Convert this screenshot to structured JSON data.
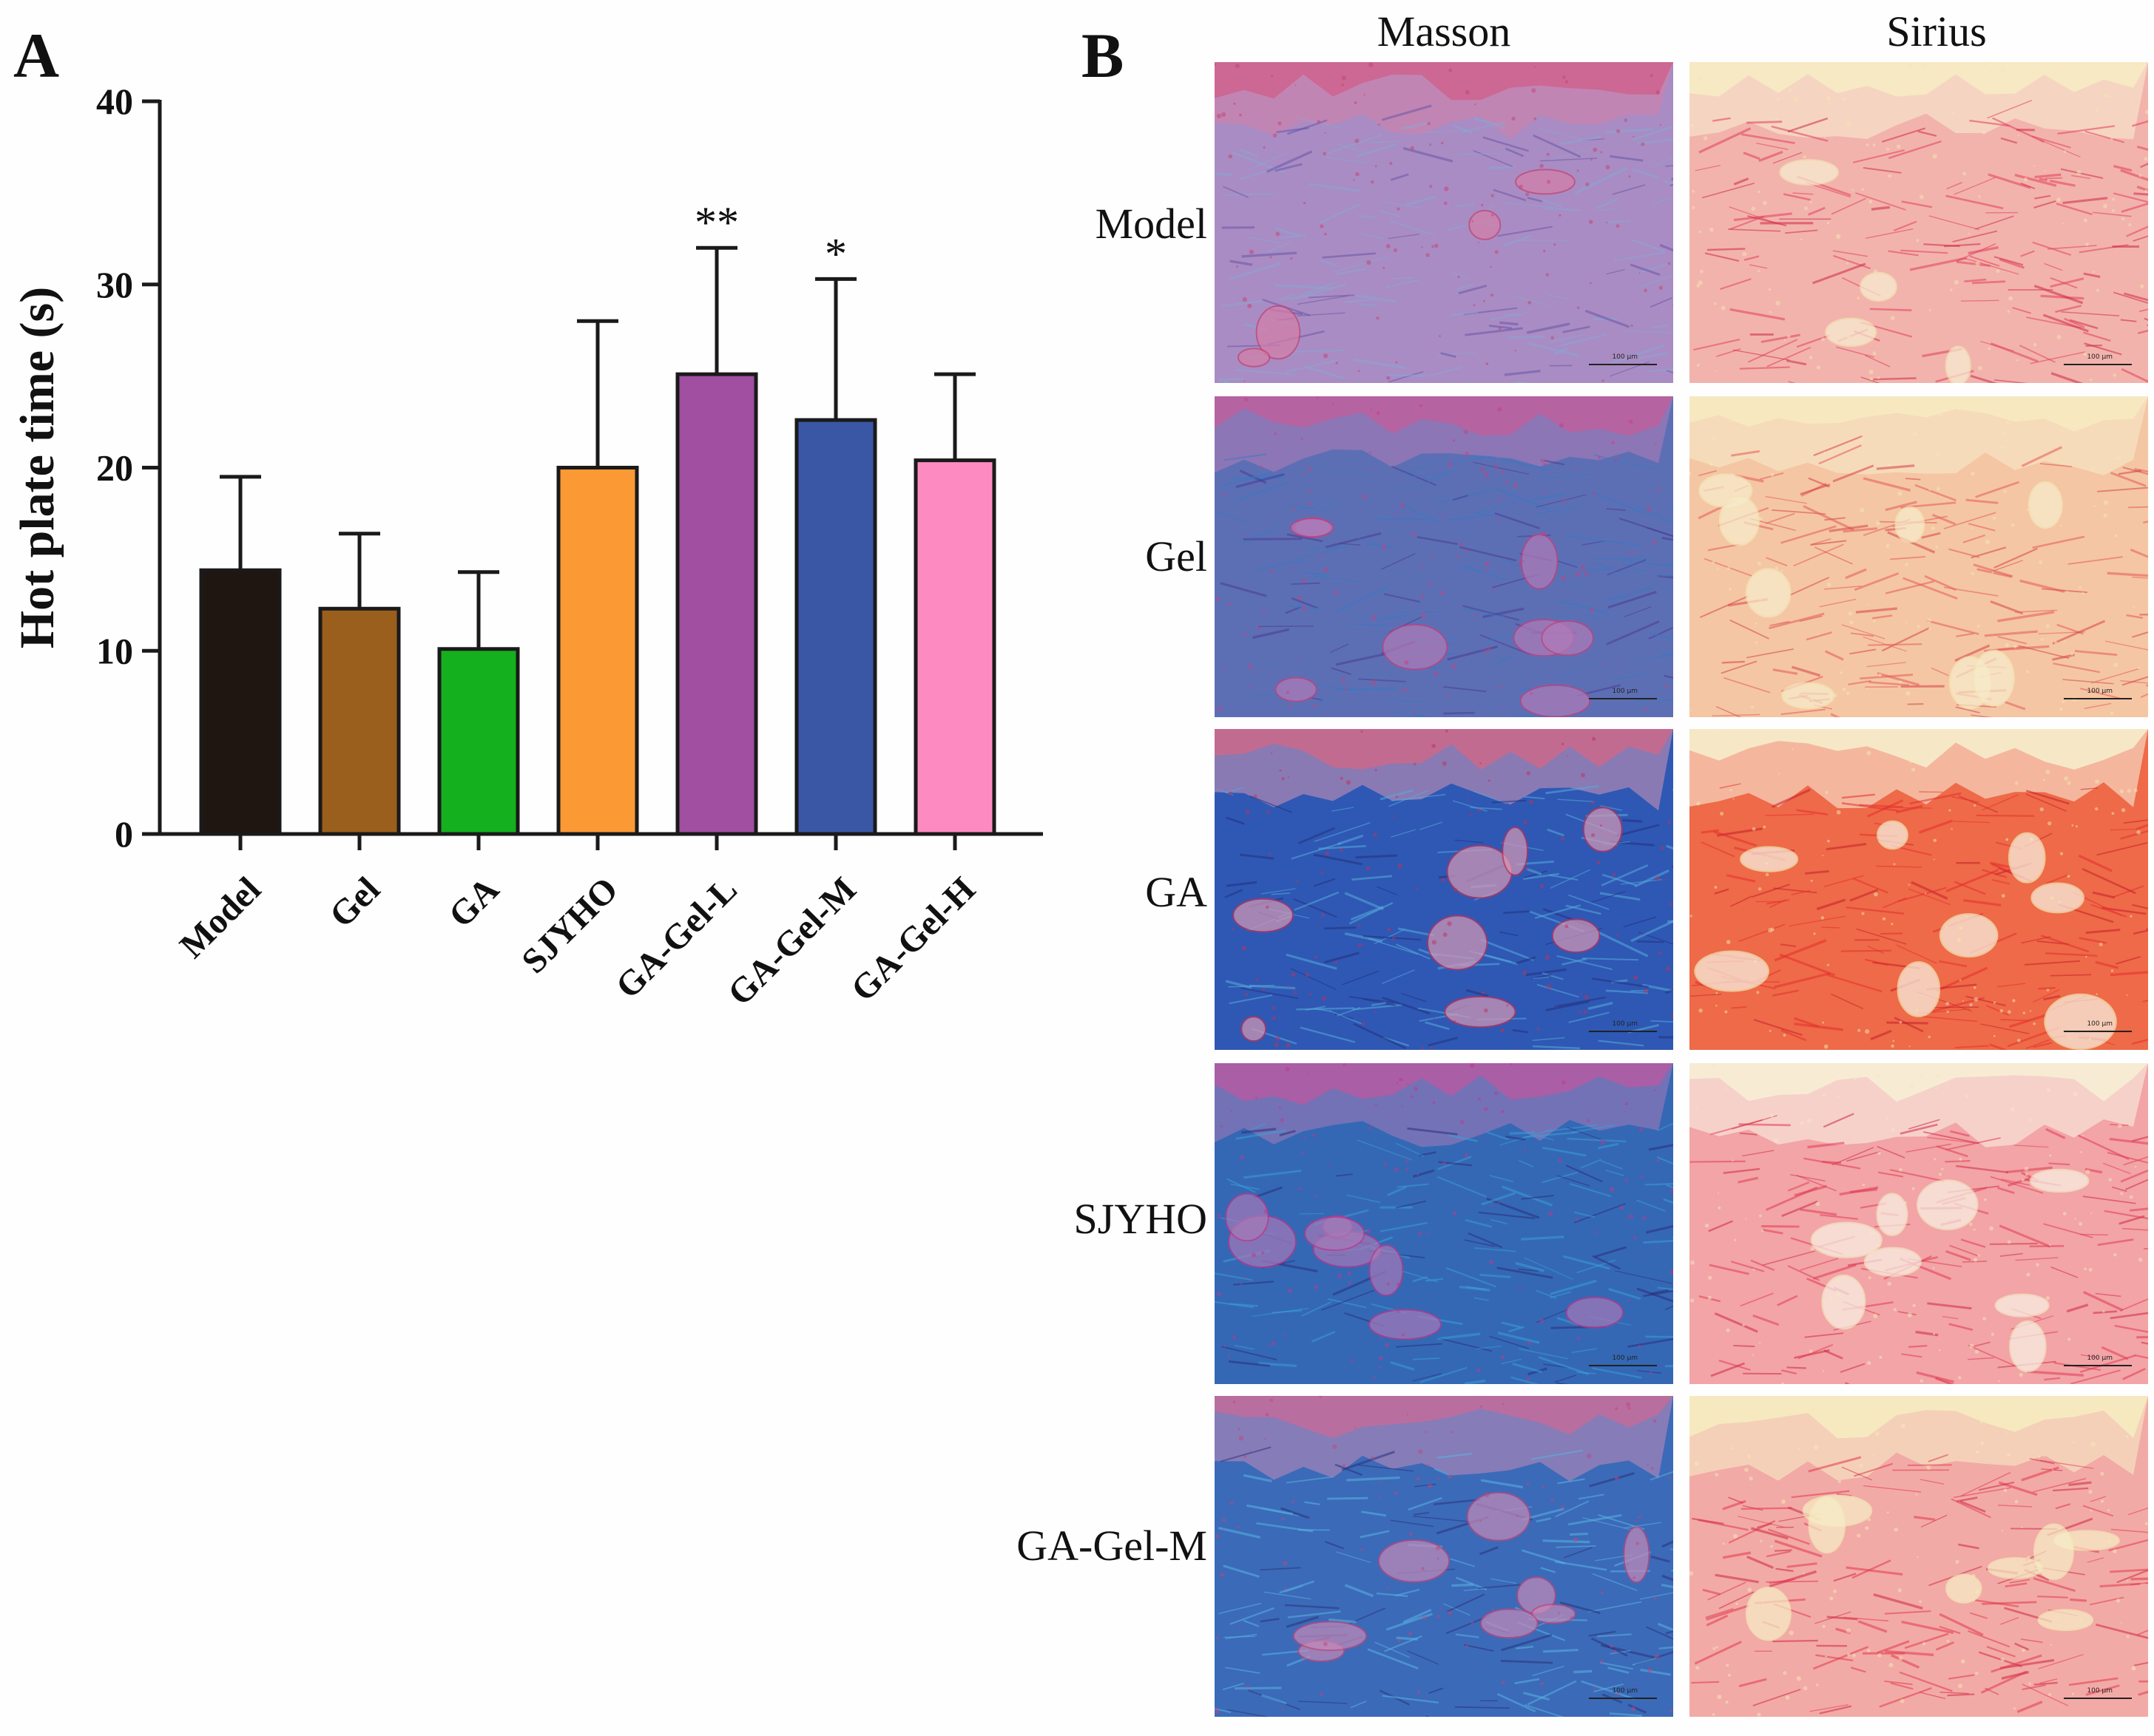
{
  "panel_a": {
    "letter": "A"
  },
  "panel_b": {
    "letter": "B",
    "columns": [
      "Masson",
      "Sirius"
    ],
    "rows": [
      "Model",
      "Gel",
      "GA",
      "SJYHO",
      "GA-Gel-M"
    ],
    "scale_bar_label": "100 μm",
    "palettes": {
      "masson": {
        "Model": {
          "base": "#a98cc3",
          "fibre": "#8aa6d6",
          "accent": "#c4416e",
          "dark": "#6a56a8",
          "blob": "#d67fa8"
        },
        "Gel": {
          "base": "#5d6fb4",
          "fibre": "#3e78c2",
          "accent": "#c93e7c",
          "dark": "#4a3d95",
          "blob": "#b27bb8"
        },
        "GA": {
          "base": "#2e58b4",
          "fibre": "#57aadb",
          "accent": "#c22f56",
          "dark": "#25307e",
          "blob": "#d698b4"
        },
        "SJYHO": {
          "base": "#3468b5",
          "fibre": "#3aa0d6",
          "accent": "#c2358a",
          "dark": "#2c2f7b",
          "blob": "#a77ab8"
        },
        "GA-Gel-M": {
          "base": "#3b6ab8",
          "fibre": "#59b3e3",
          "accent": "#c0467a",
          "dark": "#2b327c",
          "blob": "#c58ab8"
        }
      },
      "sirius": {
        "Model": {
          "base": "#f2b3ad",
          "fibre": "#e33f5a",
          "accent": "#f3e7b0",
          "dark": "#cf2a45",
          "blob": "#f8f0d4"
        },
        "Gel": {
          "base": "#f4c6a4",
          "fibre": "#e75a58",
          "accent": "#f4e8b5",
          "dark": "#d8424b",
          "blob": "#f7edcc"
        },
        "GA": {
          "base": "#ee6a48",
          "fibre": "#e52d2d",
          "accent": "#f1eab2",
          "dark": "#c81d2c",
          "blob": "#f9f6e6"
        },
        "SJYHO": {
          "base": "#f2a4a6",
          "fibre": "#e33a55",
          "accent": "#f3e9c0",
          "dark": "#d02744",
          "blob": "#f9f5e7"
        },
        "GA-Gel-M": {
          "base": "#f2aaa6",
          "fibre": "#e2384e",
          "accent": "#f3ecb8",
          "dark": "#cf2842",
          "blob": "#f7efc7"
        }
      }
    }
  },
  "chart_data": {
    "type": "bar",
    "title": "",
    "xlabel": "",
    "ylabel": "Hot plate time (s)",
    "ylim": [
      0,
      40
    ],
    "yticks": [
      0,
      10,
      20,
      30,
      40
    ],
    "categories": [
      "Model",
      "Gel",
      "GA",
      "SJYHO",
      "GA-Gel-L",
      "GA-Gel-M",
      "GA-Gel-H"
    ],
    "values": [
      14.4,
      12.3,
      10.1,
      20.0,
      25.1,
      22.6,
      20.4
    ],
    "errors": [
      5.1,
      4.1,
      4.2,
      8.0,
      6.9,
      7.7,
      4.7
    ],
    "significance": [
      "",
      "",
      "",
      "",
      "**",
      "*",
      ""
    ],
    "colors": [
      "#1f1612",
      "#9a5f1c",
      "#14b01e",
      "#fb9935",
      "#a04fa1",
      "#3a57a6",
      "#fd8ac0"
    ],
    "grid": false,
    "legend": "none"
  }
}
